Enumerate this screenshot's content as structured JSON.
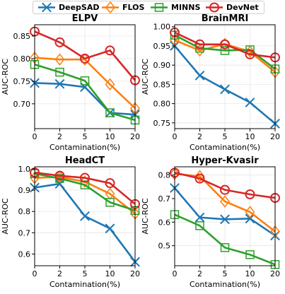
{
  "legend": [
    {
      "name": "DeepSAD",
      "color": "#1f77b4",
      "marker": "x"
    },
    {
      "name": "FLOS",
      "color": "#ff7f0e",
      "marker": "diamond"
    },
    {
      "name": "MINNS",
      "color": "#2ca02c",
      "marker": "square"
    },
    {
      "name": "DevNet",
      "color": "#d62728",
      "marker": "circle"
    }
  ],
  "chart_data": [
    {
      "type": "line",
      "title": "ELPV",
      "xlabel": "Contamination(%)",
      "ylabel": "AUC-ROC",
      "x": [
        0,
        2,
        5,
        10,
        20
      ],
      "x_ticks": [
        "0",
        "2",
        "5",
        "10",
        "20"
      ],
      "ylim": [
        0.645,
        0.875
      ],
      "y_ticks": [
        0.7,
        0.75,
        0.8,
        0.85
      ],
      "y_tick_labels": [
        "0.70",
        "0.75",
        "0.80",
        "0.85"
      ],
      "series": [
        {
          "name": "DeepSAD",
          "values": [
            0.746,
            0.744,
            0.737,
            0.68,
            0.676
          ]
        },
        {
          "name": "FLOS",
          "values": [
            0.802,
            0.798,
            0.798,
            0.743,
            0.69
          ]
        },
        {
          "name": "MINNS",
          "values": [
            0.787,
            0.77,
            0.751,
            0.68,
            0.664
          ]
        },
        {
          "name": "DevNet",
          "values": [
            0.86,
            0.836,
            0.8,
            0.818,
            0.752
          ]
        }
      ]
    },
    {
      "type": "line",
      "title": "BrainMRI",
      "xlabel": "Contamination(%)",
      "ylabel": "AUC-ROC",
      "x": [
        0,
        2,
        5,
        10,
        20
      ],
      "x_ticks": [
        "0",
        "2",
        "5",
        "10",
        "20"
      ],
      "ylim": [
        0.735,
        1.005
      ],
      "y_ticks": [
        0.75,
        0.8,
        0.85,
        0.9,
        0.95,
        1.0
      ],
      "y_tick_labels": [
        "0.75",
        "0.80",
        "0.85",
        "0.90",
        "0.95",
        "1.00"
      ],
      "series": [
        {
          "name": "DeepSAD",
          "values": [
            0.95,
            0.873,
            0.837,
            0.803,
            0.748
          ]
        },
        {
          "name": "FLOS",
          "values": [
            0.965,
            0.938,
            0.955,
            0.935,
            0.882
          ]
        },
        {
          "name": "MINNS",
          "values": [
            0.978,
            0.944,
            0.938,
            0.94,
            0.89
          ]
        },
        {
          "name": "DevNet",
          "values": [
            0.985,
            0.954,
            0.954,
            0.928,
            0.92
          ]
        }
      ]
    },
    {
      "type": "line",
      "title": "HeadCT",
      "xlabel": "Contamination(%)",
      "ylabel": "AUC-ROC",
      "x": [
        0,
        2,
        5,
        10,
        20
      ],
      "x_ticks": [
        "0",
        "2",
        "5",
        "10",
        "20"
      ],
      "ylim": [
        0.545,
        1.01
      ],
      "y_ticks": [
        0.6,
        0.7,
        0.8,
        0.9,
        1.0
      ],
      "y_tick_labels": [
        "0.6",
        "0.7",
        "0.8",
        "0.9",
        "1.0"
      ],
      "series": [
        {
          "name": "DeepSAD",
          "values": [
            0.912,
            0.93,
            0.778,
            0.72,
            0.563
          ]
        },
        {
          "name": "FLOS",
          "values": [
            0.958,
            0.962,
            0.94,
            0.883,
            0.79
          ]
        },
        {
          "name": "MINNS",
          "values": [
            0.978,
            0.955,
            0.925,
            0.843,
            0.805
          ]
        },
        {
          "name": "DevNet",
          "values": [
            0.983,
            0.968,
            0.958,
            0.933,
            0.835
          ]
        }
      ]
    },
    {
      "type": "line",
      "title": "Hyper-Kvasir",
      "xlabel": "Contamination(%)",
      "ylabel": "AUC-ROC",
      "x": [
        0,
        2,
        5,
        10,
        20
      ],
      "x_ticks": [
        "0",
        "2",
        "5",
        "10",
        "20"
      ],
      "ylim": [
        0.415,
        0.835
      ],
      "y_ticks": [
        0.5,
        0.6,
        0.7,
        0.8
      ],
      "y_tick_labels": [
        "0.5",
        "0.6",
        "0.7",
        "0.8"
      ],
      "series": [
        {
          "name": "DeepSAD",
          "values": [
            0.745,
            0.62,
            0.612,
            0.615,
            0.543
          ]
        },
        {
          "name": "FLOS",
          "values": [
            0.805,
            0.795,
            0.688,
            0.643,
            0.56
          ]
        },
        {
          "name": "MINNS",
          "values": [
            0.632,
            0.585,
            0.492,
            0.462,
            0.42
          ]
        },
        {
          "name": "DevNet",
          "values": [
            0.81,
            0.785,
            0.737,
            0.718,
            0.703
          ]
        }
      ]
    }
  ]
}
